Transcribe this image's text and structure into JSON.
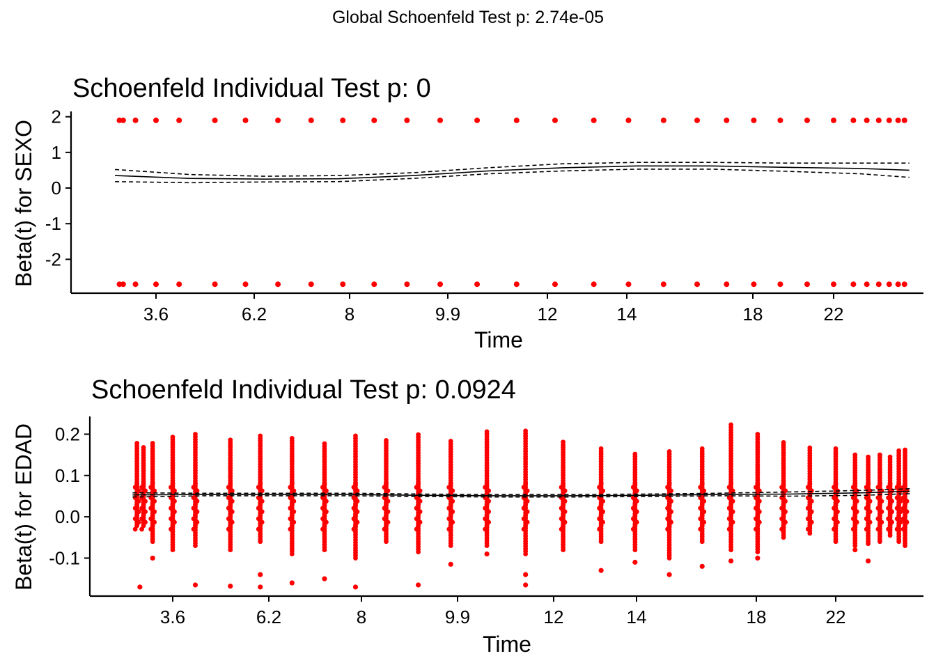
{
  "figure_title": "Global Schoenfeld Test p: 2.74e-05",
  "colors": {
    "points": "#ff0000",
    "lines": "#000000",
    "axes": "#000000",
    "background": "#ffffff"
  },
  "chart_data": [
    {
      "type": "scatter",
      "title": "Schoenfeld Individual Test p: 0",
      "xlabel": "Time",
      "ylabel": "Beta(t) for SEXO",
      "x_ticks": [
        "3.6",
        "6.2",
        "8",
        "9.9",
        "12",
        "14",
        "18",
        "22"
      ],
      "y_ticks": [
        "-2",
        "-1",
        "0",
        "1",
        "2"
      ],
      "ylim": [
        -2.95,
        2.15
      ],
      "grid": false,
      "legend": "none",
      "x_points": [
        1.12,
        1.22,
        1.55,
        2.1,
        2.72,
        3.68,
        4.5,
        5.37,
        6.26,
        7.11,
        7.95,
        8.83,
        9.72,
        10.71,
        11.77,
        12.8,
        13.84,
        14.77,
        15.71,
        16.61,
        17.4,
        18.13,
        18.84,
        19.56,
        20.27,
        20.8,
        21.16,
        21.48,
        21.76,
        22.0,
        22.17
      ],
      "series": [
        {
          "name": "",
          "role": "points",
          "y_values": [
            1.9,
            -2.7
          ]
        },
        {
          "name": "",
          "role": "smooth",
          "x": [
            1.0,
            3.0,
            5.0,
            7.0,
            9.0,
            11.0,
            13.0,
            15.0,
            17.0,
            19.0,
            21.0,
            22.3
          ],
          "y": [
            0.35,
            0.27,
            0.25,
            0.26,
            0.35,
            0.48,
            0.57,
            0.62,
            0.62,
            0.58,
            0.55,
            0.5
          ]
        },
        {
          "name": "",
          "role": "upper band",
          "x": [
            1.0,
            3.0,
            5.0,
            7.0,
            9.0,
            11.0,
            13.0,
            15.0,
            17.0,
            19.0,
            21.0,
            22.3
          ],
          "y": [
            0.52,
            0.38,
            0.33,
            0.35,
            0.43,
            0.57,
            0.68,
            0.72,
            0.72,
            0.7,
            0.7,
            0.7
          ]
        },
        {
          "name": "",
          "role": "lower band",
          "x": [
            1.0,
            3.0,
            5.0,
            7.0,
            9.0,
            11.0,
            13.0,
            15.0,
            17.0,
            19.0,
            21.0,
            22.3
          ],
          "y": [
            0.18,
            0.15,
            0.17,
            0.18,
            0.27,
            0.4,
            0.48,
            0.53,
            0.53,
            0.47,
            0.4,
            0.3
          ]
        }
      ]
    },
    {
      "type": "scatter",
      "title": "Schoenfeld Individual Test p: 0.0924",
      "xlabel": "Time",
      "ylabel": "Beta(t) for EDAD",
      "x_ticks": [
        "3.6",
        "6.2",
        "8",
        "9.9",
        "12",
        "14",
        "18",
        "22"
      ],
      "y_ticks": [
        "-0.1",
        "0.0",
        "0.1",
        "0.2"
      ],
      "ylim": [
        -0.192,
        0.243
      ],
      "grid": false,
      "legend": "none",
      "x_points": [
        1.12,
        1.3,
        1.55,
        2.1,
        2.72,
        3.68,
        4.5,
        5.37,
        6.26,
        7.11,
        7.95,
        8.83,
        9.72,
        10.71,
        11.77,
        12.8,
        13.84,
        14.77,
        15.71,
        16.61,
        17.4,
        18.13,
        18.84,
        19.56,
        20.27,
        20.8,
        21.16,
        21.48,
        21.76,
        22.0,
        22.17
      ],
      "series": [
        {
          "name": "",
          "role": "points",
          "y_max": [
            0.178,
            0.168,
            0.178,
            0.193,
            0.2,
            0.186,
            0.196,
            0.19,
            0.177,
            0.196,
            0.185,
            0.199,
            0.183,
            0.206,
            0.208,
            0.181,
            0.165,
            0.152,
            0.158,
            0.165,
            0.223,
            0.2,
            0.18,
            0.167,
            0.165,
            0.15,
            0.145,
            0.15,
            0.145,
            0.16,
            0.162
          ],
          "y_min": [
            -0.02,
            -0.015,
            -0.06,
            -0.08,
            -0.07,
            -0.08,
            -0.06,
            -0.09,
            -0.08,
            -0.1,
            -0.06,
            -0.085,
            -0.07,
            -0.07,
            -0.09,
            -0.08,
            -0.06,
            -0.08,
            -0.1,
            -0.06,
            -0.08,
            -0.085,
            -0.05,
            -0.04,
            -0.06,
            -0.07,
            -0.065,
            -0.06,
            -0.045,
            -0.06,
            -0.07
          ],
          "y_outliers": [
            [
              1.2,
              -0.17
            ],
            [
              1.55,
              -0.1
            ],
            [
              2.72,
              -0.165
            ],
            [
              3.68,
              -0.168
            ],
            [
              4.5,
              -0.17
            ],
            [
              4.5,
              -0.14
            ],
            [
              5.37,
              -0.16
            ],
            [
              6.26,
              -0.15
            ],
            [
              7.11,
              -0.17
            ],
            [
              8.83,
              -0.165
            ],
            [
              9.72,
              -0.115
            ],
            [
              10.71,
              -0.09
            ],
            [
              11.77,
              -0.165
            ],
            [
              11.77,
              -0.14
            ],
            [
              13.84,
              -0.13
            ],
            [
              14.77,
              -0.11
            ],
            [
              15.71,
              -0.14
            ],
            [
              16.61,
              -0.12
            ],
            [
              17.4,
              -0.107
            ],
            [
              18.13,
              -0.1
            ],
            [
              20.8,
              -0.08
            ],
            [
              21.16,
              -0.107
            ]
          ]
        },
        {
          "name": "",
          "role": "smooth",
          "x": [
            1.0,
            3.0,
            5.0,
            7.0,
            9.0,
            11.0,
            13.0,
            15.0,
            17.0,
            19.0,
            21.0,
            22.3
          ],
          "y": [
            0.053,
            0.054,
            0.054,
            0.054,
            0.052,
            0.051,
            0.051,
            0.052,
            0.054,
            0.055,
            0.058,
            0.062
          ]
        },
        {
          "name": "",
          "role": "upper band",
          "x": [
            1.0,
            3.0,
            5.0,
            7.0,
            9.0,
            11.0,
            13.0,
            15.0,
            17.0,
            19.0,
            21.0,
            22.3
          ],
          "y": [
            0.058,
            0.057,
            0.057,
            0.057,
            0.055,
            0.054,
            0.054,
            0.055,
            0.057,
            0.06,
            0.064,
            0.068
          ]
        },
        {
          "name": "",
          "role": "lower band",
          "x": [
            1.0,
            3.0,
            5.0,
            7.0,
            9.0,
            11.0,
            13.0,
            15.0,
            17.0,
            19.0,
            21.0,
            22.3
          ],
          "y": [
            0.048,
            0.051,
            0.051,
            0.051,
            0.049,
            0.048,
            0.048,
            0.049,
            0.051,
            0.05,
            0.052,
            0.056
          ]
        }
      ]
    }
  ]
}
